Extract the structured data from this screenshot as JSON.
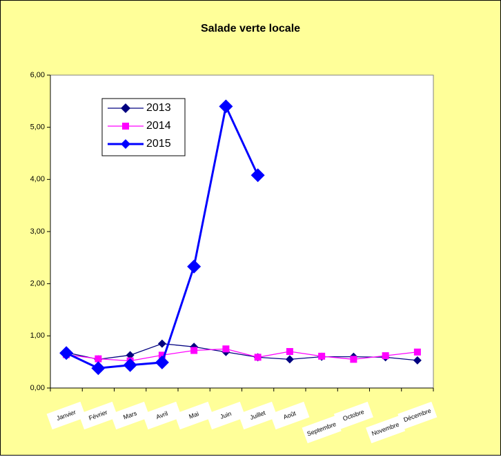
{
  "chart_data": {
    "type": "line",
    "title": "Salade verte locale",
    "categories": [
      "Janvier",
      "Février",
      "Mars",
      "Avril",
      "Mai",
      "Juin",
      "Juillet",
      "Août",
      "Septembre",
      "Octobre",
      "Novembre",
      "Décembre"
    ],
    "series": [
      {
        "name": "2013",
        "color": "#000080",
        "values": [
          0.68,
          0.55,
          0.63,
          0.85,
          0.79,
          0.69,
          0.59,
          0.55,
          0.6,
          0.6,
          0.59,
          0.53
        ]
      },
      {
        "name": "2014",
        "color": "#ff00ff",
        "values": [
          0.64,
          0.56,
          0.52,
          0.63,
          0.72,
          0.75,
          0.59,
          0.7,
          0.61,
          0.55,
          0.62,
          0.69
        ]
      },
      {
        "name": "2015",
        "color": "#0000ff",
        "values": [
          0.67,
          0.38,
          0.44,
          0.49,
          2.33,
          5.4,
          4.08,
          null,
          null,
          null,
          null,
          null
        ]
      }
    ],
    "ylim": [
      0,
      6
    ],
    "yticks": [
      {
        "value": 0,
        "label": "0,00"
      },
      {
        "value": 1,
        "label": "1,00"
      },
      {
        "value": 2,
        "label": "2,00"
      },
      {
        "value": 3,
        "label": "3,00"
      },
      {
        "value": 4,
        "label": "4,00"
      },
      {
        "value": 5,
        "label": "5,00"
      },
      {
        "value": 6,
        "label": "6,00"
      }
    ],
    "grid": false,
    "legend": "upper left"
  }
}
